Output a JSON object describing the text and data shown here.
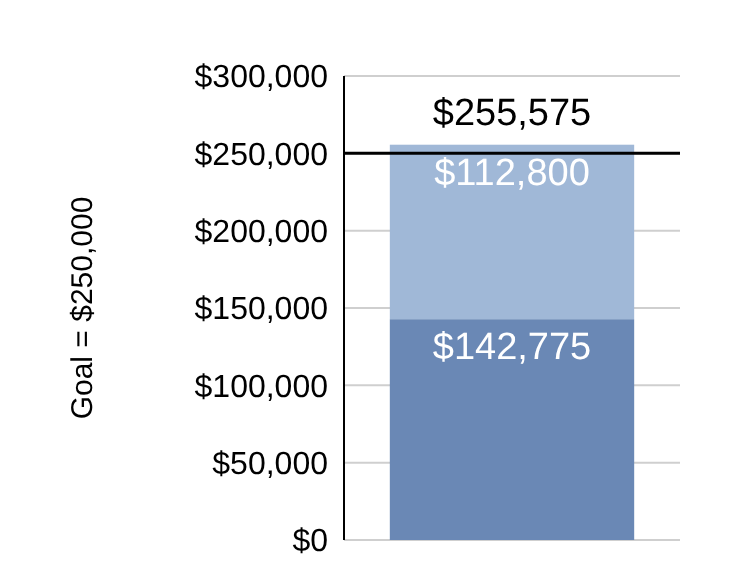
{
  "chart_data": {
    "type": "bar",
    "ylabel": "Goal = $250,000",
    "categories": [
      null
    ],
    "stacked": true,
    "series": [
      {
        "color": "#6a88b5",
        "values": [
          142775
        ],
        "value_labels": [
          "$142,775"
        ]
      },
      {
        "color": "#a0b8d7",
        "values": [
          112800
        ],
        "value_labels": [
          "$112,800"
        ]
      }
    ],
    "totals": [
      "$255,575"
    ],
    "ylim": [
      0,
      300000
    ],
    "yticks": [
      {
        "value": 0,
        "label": "$0"
      },
      {
        "value": 50000,
        "label": "$50,000"
      },
      {
        "value": 100000,
        "label": "$100,000"
      },
      {
        "value": 150000,
        "label": "$150,000"
      },
      {
        "value": 200000,
        "label": "$200,000"
      },
      {
        "value": 250000,
        "label": "$250,000"
      },
      {
        "value": 300000,
        "label": "$300,000"
      }
    ],
    "grid": "y",
    "ref_lines": [
      {
        "axis": "y",
        "value": 250000,
        "color": "#000000"
      }
    ]
  }
}
